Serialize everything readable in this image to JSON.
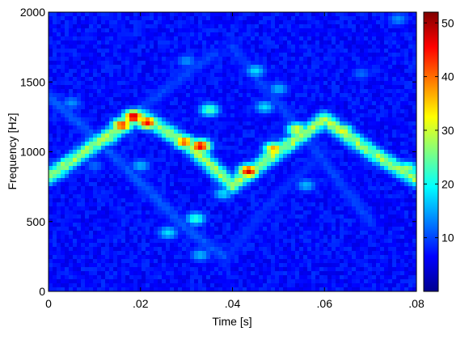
{
  "chart_data": {
    "type": "heatmap",
    "title": "",
    "xlabel": "Time [s]",
    "ylabel": "Frequency [Hz]",
    "xlim": [
      0,
      0.08
    ],
    "ylim": [
      0,
      2000
    ],
    "x_ticks": [
      0,
      0.02,
      0.04,
      0.06,
      0.08
    ],
    "x_tick_labels": [
      "0",
      ".02",
      ".04",
      ".06",
      ".08"
    ],
    "y_ticks": [
      0,
      500,
      1000,
      1500,
      2000
    ],
    "y_tick_labels": [
      "0",
      "500",
      "1000",
      "1500",
      "2000"
    ],
    "colormap": "jet",
    "colorbar": {
      "range": [
        0,
        52
      ],
      "ticks": [
        10,
        20,
        30,
        40,
        50
      ],
      "tick_labels": [
        "10",
        "20",
        "30",
        "40",
        "50"
      ]
    },
    "background_level": 5,
    "ridges": [
      {
        "points": [
          [
            0.0,
            820
          ],
          [
            0.01,
            1050
          ],
          [
            0.02,
            1260
          ],
          [
            0.03,
            1060
          ],
          [
            0.04,
            760
          ]
        ],
        "peak": 28
      },
      {
        "points": [
          [
            0.04,
            760
          ],
          [
            0.05,
            1000
          ],
          [
            0.06,
            1230
          ],
          [
            0.07,
            1000
          ],
          [
            0.08,
            800
          ]
        ],
        "peak": 28
      },
      {
        "points": [
          [
            0.0,
            1400
          ],
          [
            0.01,
            1100
          ],
          [
            0.02,
            780
          ],
          [
            0.03,
            450
          ],
          [
            0.038,
            250
          ]
        ],
        "peak": 11
      },
      {
        "points": [
          [
            0.02,
            1300
          ],
          [
            0.03,
            1560
          ],
          [
            0.036,
            1700
          ]
        ],
        "peak": 10
      },
      {
        "points": [
          [
            0.04,
            1750
          ],
          [
            0.046,
            1500
          ],
          [
            0.056,
            1100
          ],
          [
            0.064,
            750
          ],
          [
            0.07,
            500
          ]
        ],
        "peak": 10
      },
      {
        "points": [
          [
            0.038,
            200
          ],
          [
            0.05,
            700
          ],
          [
            0.06,
            1000
          ]
        ],
        "peak": 9
      }
    ],
    "hotspots": [
      {
        "t": 0.0185,
        "f": 1250,
        "value": 50
      },
      {
        "t": 0.016,
        "f": 1190,
        "value": 44
      },
      {
        "t": 0.0215,
        "f": 1210,
        "value": 46
      },
      {
        "t": 0.0295,
        "f": 1070,
        "value": 42
      },
      {
        "t": 0.033,
        "f": 1040,
        "value": 48
      },
      {
        "t": 0.0435,
        "f": 860,
        "value": 48
      },
      {
        "t": 0.049,
        "f": 1020,
        "value": 38
      },
      {
        "t": 0.054,
        "f": 1160,
        "value": 32
      },
      {
        "t": 0.06,
        "f": 1230,
        "value": 30
      },
      {
        "t": 0.064,
        "f": 1150,
        "value": 32
      },
      {
        "t": 0.078,
        "f": 880,
        "value": 28
      },
      {
        "t": 0.002,
        "f": 850,
        "value": 24
      },
      {
        "t": 0.013,
        "f": 1100,
        "value": 28
      },
      {
        "t": 0.035,
        "f": 1300,
        "value": 24
      },
      {
        "t": 0.032,
        "f": 520,
        "value": 22
      },
      {
        "t": 0.026,
        "f": 420,
        "value": 18
      },
      {
        "t": 0.033,
        "f": 260,
        "value": 16
      },
      {
        "t": 0.045,
        "f": 1580,
        "value": 18
      },
      {
        "t": 0.05,
        "f": 1450,
        "value": 16
      },
      {
        "t": 0.056,
        "f": 760,
        "value": 16
      },
      {
        "t": 0.038,
        "f": 700,
        "value": 18
      },
      {
        "t": 0.047,
        "f": 1320,
        "value": 18
      },
      {
        "t": 0.03,
        "f": 1650,
        "value": 14
      },
      {
        "t": 0.005,
        "f": 1350,
        "value": 14
      },
      {
        "t": 0.076,
        "f": 1950,
        "value": 14
      },
      {
        "t": 0.068,
        "f": 1560,
        "value": 12
      },
      {
        "t": 0.02,
        "f": 900,
        "value": 16
      },
      {
        "t": 0.01,
        "f": 900,
        "value": 12
      }
    ]
  }
}
